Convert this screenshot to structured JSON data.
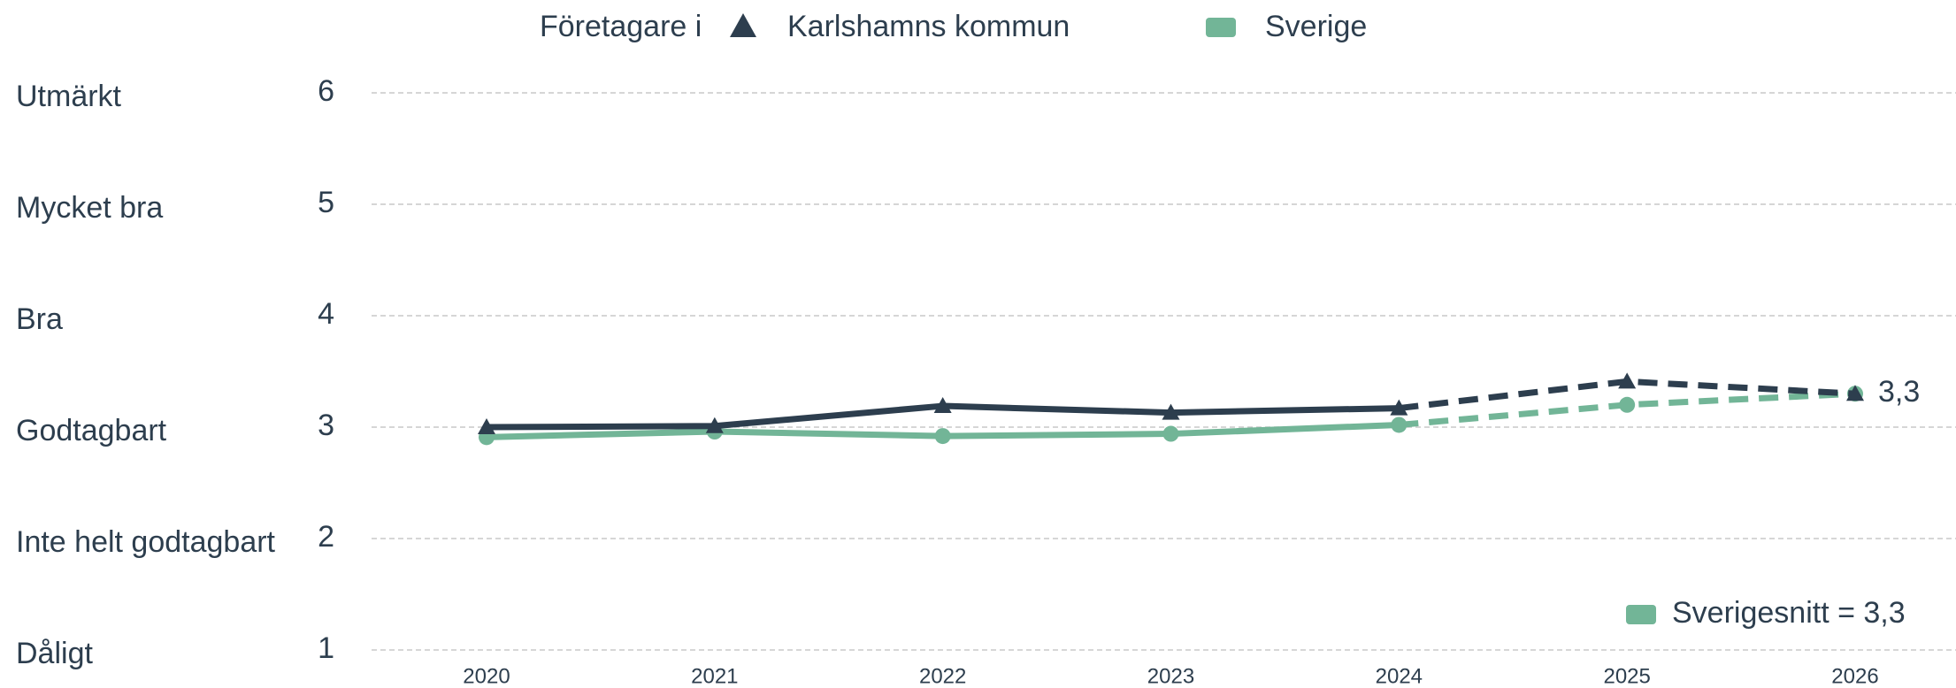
{
  "chart_data": {
    "type": "line",
    "legend_title": "Företagare i",
    "categories": [
      "2020",
      "2021",
      "2022",
      "2023",
      "2024",
      "2025",
      "2026"
    ],
    "dashed_from": "2024",
    "series": [
      {
        "name": "Karlshamns kommun",
        "color": "#2d3e4e",
        "marker": "triangle",
        "values": [
          3.0,
          3.01,
          3.19,
          3.13,
          3.17,
          3.41,
          3.3
        ],
        "value_labels": [
          null,
          null,
          null,
          null,
          null,
          null,
          "3,3"
        ]
      },
      {
        "name": "Sverige",
        "color": "#72b597",
        "marker": "circle",
        "values": [
          2.91,
          2.96,
          2.92,
          2.94,
          3.02,
          3.2,
          3.3
        ]
      }
    ],
    "ylim": [
      1,
      6
    ],
    "yticks": [
      1,
      2,
      3,
      4,
      5,
      6
    ],
    "ytick_names": [
      "Dåligt",
      "Inte helt godtagbart",
      "Godtagbart",
      "Bra",
      "Mycket bra",
      "Utmärkt"
    ],
    "grid": true,
    "annotation": "Sverigesnitt = 3,3"
  }
}
